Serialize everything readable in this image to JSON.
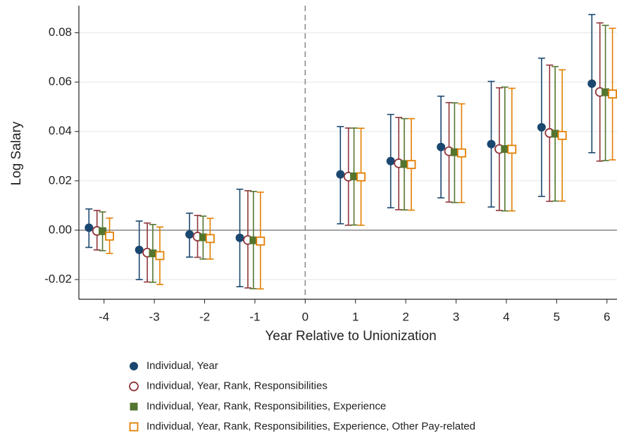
{
  "chart_data": {
    "type": "errorbar",
    "y_label": "Log Salary",
    "x_label": "Year Relative to Unionization",
    "x": [
      -4,
      -3,
      -2,
      -1,
      1,
      2,
      3,
      4,
      5,
      6
    ],
    "xlim": [
      -4.5,
      6.2
    ],
    "xticks": [
      -4,
      -3,
      -2,
      -1,
      0,
      1,
      2,
      3,
      4,
      5,
      6
    ],
    "ylim": [
      -0.028,
      0.091
    ],
    "yticks": [
      -0.02,
      {
        "value": 0,
        "label": "0.00"
      },
      0.02,
      0.04,
      0.06,
      0.08
    ],
    "grid": true,
    "hline": 0,
    "vline": 0,
    "series": [
      {
        "name": "Individual, Year",
        "color": "#1a476f",
        "marker": "circle-filled",
        "values": [
          0.001,
          -0.008,
          -0.0017,
          -0.0031,
          0.0226,
          0.028,
          0.0337,
          0.0349,
          0.0417,
          0.0594
        ],
        "lower": [
          -0.007,
          -0.02,
          -0.0109,
          -0.0229,
          0.0026,
          0.0091,
          0.0131,
          0.0094,
          0.0137,
          0.0314
        ],
        "upper": [
          0.0086,
          0.0037,
          0.0069,
          0.0166,
          0.042,
          0.0469,
          0.0543,
          0.0603,
          0.0697,
          0.0874
        ]
      },
      {
        "name": "Individual, Year, Rank, Responsibilities",
        "color": "#90353b",
        "marker": "circle-open",
        "values": [
          -0.0003,
          -0.0091,
          -0.0026,
          -0.004,
          0.0217,
          0.0271,
          0.032,
          0.0329,
          0.0394,
          0.056
        ],
        "lower": [
          -0.008,
          -0.021,
          -0.011,
          -0.0234,
          0.002,
          0.0083,
          0.0114,
          0.008,
          0.0117,
          0.028
        ],
        "upper": [
          0.008,
          0.0029,
          0.006,
          0.016,
          0.0414,
          0.0457,
          0.0517,
          0.0577,
          0.0669,
          0.084
        ]
      },
      {
        "name": "Individual, Year, Rank, Responsibilities, Experience",
        "color": "#55752f",
        "marker": "square-filled",
        "values": [
          -0.0004,
          -0.0094,
          -0.0029,
          -0.0041,
          0.0218,
          0.0268,
          0.0316,
          0.0329,
          0.0391,
          0.0559
        ],
        "lower": [
          -0.0083,
          -0.0211,
          -0.0117,
          -0.0237,
          0.0021,
          0.0082,
          0.0112,
          0.0078,
          0.0118,
          0.0282
        ],
        "upper": [
          0.0074,
          0.0023,
          0.0057,
          0.0157,
          0.0414,
          0.0452,
          0.0516,
          0.058,
          0.0663,
          0.083
        ]
      },
      {
        "name": "Individual, Year, Rank, Responsibilities, Experience, Other Pay-related",
        "color": "#e37e00",
        "marker": "square-open",
        "values": [
          -0.0024,
          -0.0103,
          -0.0034,
          -0.0044,
          0.0216,
          0.0266,
          0.0313,
          0.0328,
          0.0384,
          0.0552
        ],
        "lower": [
          -0.0094,
          -0.022,
          -0.0117,
          -0.0238,
          0.002,
          0.0081,
          0.0112,
          0.0078,
          0.0118,
          0.0285
        ],
        "upper": [
          0.0049,
          0.0013,
          0.0048,
          0.0154,
          0.0413,
          0.0452,
          0.0512,
          0.0575,
          0.065,
          0.0818
        ]
      }
    ]
  }
}
